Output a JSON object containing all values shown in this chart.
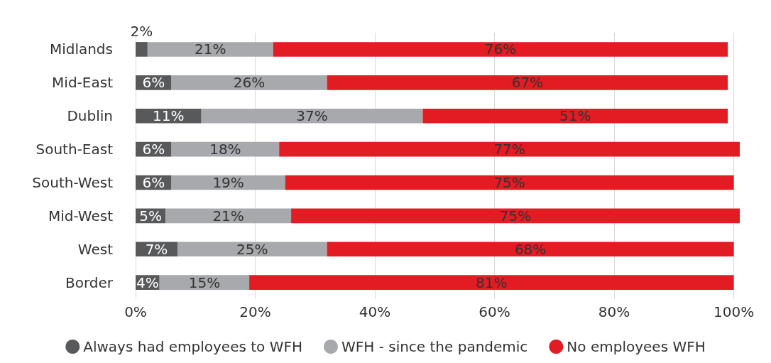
{
  "chart_data": {
    "type": "bar",
    "orientation": "horizontal",
    "stacked": true,
    "categories": [
      "Midlands",
      "Mid-East",
      "Dublin",
      "South-East",
      "South-West",
      "Mid-West",
      "West",
      "Border"
    ],
    "series": [
      {
        "name": "Always had employees to WFH",
        "color": "#58595b",
        "values": [
          2,
          6,
          11,
          6,
          6,
          5,
          7,
          4
        ],
        "value_labels": [
          "2%",
          "6%",
          "11%",
          "6%",
          "6%",
          "5%",
          "7%",
          "4%"
        ]
      },
      {
        "name": "WFH - since the pandemic",
        "color": "#a7a9ac",
        "values": [
          21,
          26,
          37,
          18,
          19,
          21,
          25,
          15
        ],
        "value_labels": [
          "21%",
          "26%",
          "37%",
          "18%",
          "19%",
          "21%",
          "25%",
          "15%"
        ]
      },
      {
        "name": "No employees WFH",
        "color": "#e31b23",
        "values": [
          76,
          67,
          51,
          77,
          75,
          75,
          68,
          81
        ],
        "value_labels": [
          "76%",
          "67%",
          "51%",
          "77%",
          "75%",
          "75%",
          "68%",
          "81%"
        ]
      }
    ],
    "xlim": [
      0,
      101
    ],
    "xticks": [
      {
        "value": 0,
        "label": "0%"
      },
      {
        "value": 20,
        "label": "20%"
      },
      {
        "value": 40,
        "label": "40%"
      },
      {
        "value": 60,
        "label": "60%"
      },
      {
        "value": 80,
        "label": "80%"
      },
      {
        "value": 100,
        "label": "100%"
      }
    ],
    "grid": "x",
    "legend": "bottom"
  }
}
